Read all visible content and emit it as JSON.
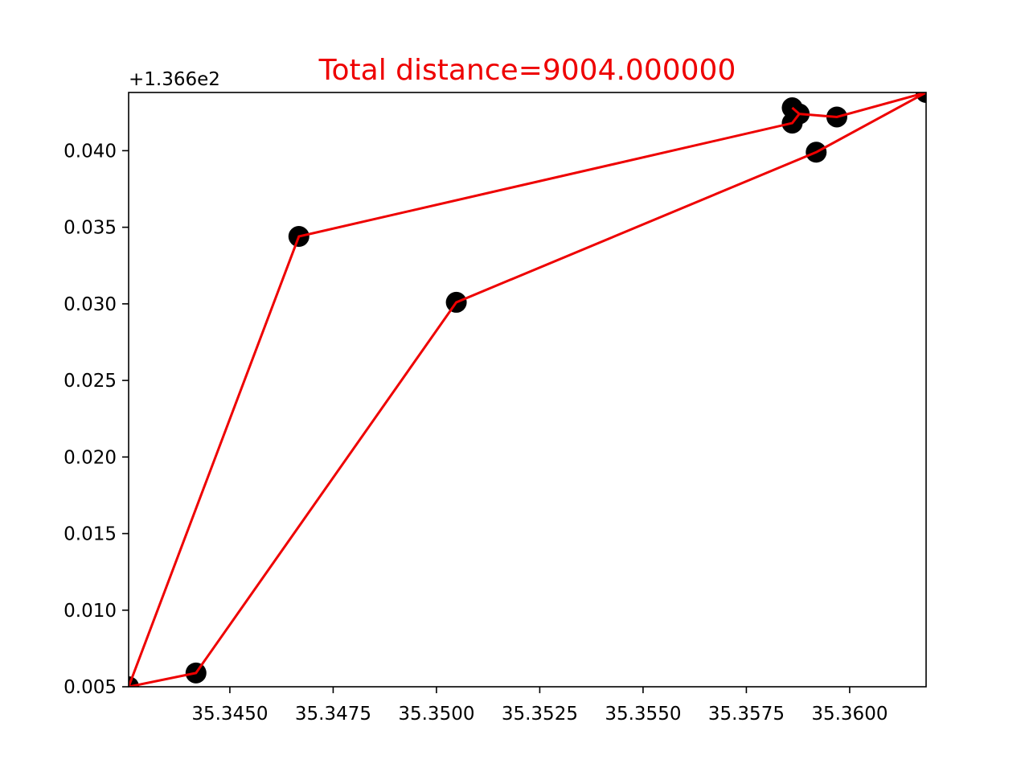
{
  "chart_data": {
    "type": "scatter",
    "title": "Total distance=9004.000000",
    "title_color": "#ee0000",
    "y_offset_label": "+1.366e2",
    "xlabel": "",
    "ylabel": "",
    "xlim": [
      35.34255,
      35.36185
    ],
    "ylim": [
      0.005,
      0.0438
    ],
    "grid": false,
    "x_ticks": [
      35.345,
      35.3475,
      35.35,
      35.3525,
      35.355,
      35.3575,
      35.36
    ],
    "x_tick_labels": [
      "35.3450",
      "35.3475",
      "35.3500",
      "35.3525",
      "35.3550",
      "35.3575",
      "35.3600"
    ],
    "y_ticks": [
      0.005,
      0.01,
      0.015,
      0.02,
      0.025,
      0.03,
      0.035,
      0.04
    ],
    "y_tick_labels": [
      "0.005",
      "0.010",
      "0.015",
      "0.020",
      "0.025",
      "0.030",
      "0.035",
      "0.040"
    ],
    "points": [
      {
        "x": 35.34255,
        "y": 0.005
      },
      {
        "x": 35.34418,
        "y": 0.0059
      },
      {
        "x": 35.35048,
        "y": 0.0301
      },
      {
        "x": 35.35919,
        "y": 0.0399
      },
      {
        "x": 35.36185,
        "y": 0.0438
      },
      {
        "x": 35.35969,
        "y": 0.0422
      },
      {
        "x": 35.35878,
        "y": 0.0424
      },
      {
        "x": 35.35861,
        "y": 0.0428
      },
      {
        "x": 35.35861,
        "y": 0.0418
      },
      {
        "x": 35.34667,
        "y": 0.0344
      }
    ],
    "route": [
      {
        "x": 35.34255,
        "y": 0.005
      },
      {
        "x": 35.34418,
        "y": 0.0059
      },
      {
        "x": 35.35048,
        "y": 0.0301
      },
      {
        "x": 35.35919,
        "y": 0.0399
      },
      {
        "x": 35.36185,
        "y": 0.0438
      },
      {
        "x": 35.35969,
        "y": 0.0422
      },
      {
        "x": 35.35878,
        "y": 0.0424
      },
      {
        "x": 35.35861,
        "y": 0.0428
      },
      {
        "x": 35.35878,
        "y": 0.0424
      },
      {
        "x": 35.35861,
        "y": 0.0418
      },
      {
        "x": 35.34667,
        "y": 0.0344
      },
      {
        "x": 35.34255,
        "y": 0.005
      }
    ],
    "point_color": "#000000",
    "line_color": "#ee0000"
  }
}
